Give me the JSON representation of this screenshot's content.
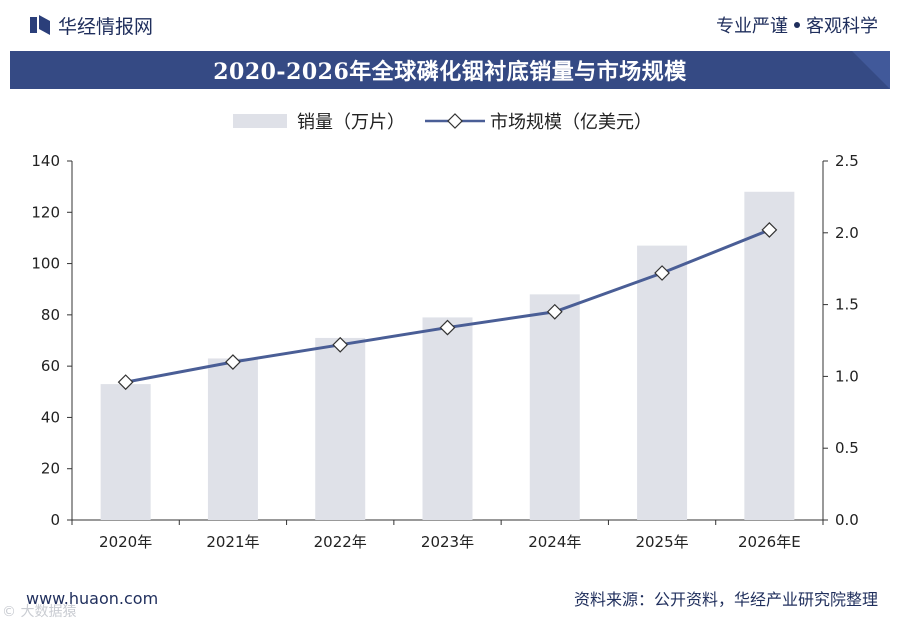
{
  "header": {
    "brand": "华经情报网",
    "tagline_left": "专业严谨",
    "tagline_right": "客观科学"
  },
  "title": "2020-2026年全球磷化铟衬底销量与市场规模",
  "chart_data": {
    "type": "bar",
    "categories": [
      "2020年",
      "2021年",
      "2022年",
      "2023年",
      "2024年",
      "2025年",
      "2026年E"
    ],
    "series": [
      {
        "name": "销量（万片）",
        "type": "bar",
        "axis": "left",
        "color": "#dfe1e8",
        "values": [
          53,
          63,
          71,
          79,
          88,
          107,
          128
        ]
      },
      {
        "name": "市场规模（亿美元）",
        "type": "line",
        "axis": "right",
        "color": "#4a5e96",
        "values": [
          0.96,
          1.1,
          1.22,
          1.34,
          1.45,
          1.72,
          2.02
        ]
      }
    ],
    "left_axis": {
      "ylim": [
        0,
        140
      ],
      "ticks": [
        "0",
        "20",
        "40",
        "60",
        "80",
        "100",
        "120",
        "140"
      ]
    },
    "right_axis": {
      "ylim": [
        0,
        2.5
      ],
      "ticks": [
        "0.0",
        "0.5",
        "1.0",
        "1.5",
        "2.0",
        "2.5"
      ]
    },
    "legend_position": "top-center",
    "grid": false
  },
  "footer": {
    "website": "www.huaon.com",
    "source": "资料来源：公开资料，华经产业研究院整理"
  },
  "watermark": "© 大数据猿"
}
